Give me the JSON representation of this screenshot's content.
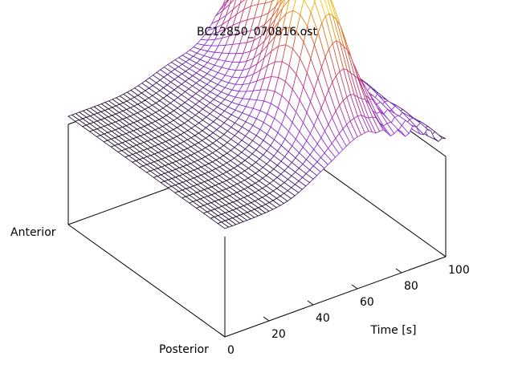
{
  "chart_data": {
    "type": "surface",
    "title": "BC12850_070816.ost",
    "xlabel": "Time [s]",
    "x_ticks": [
      0,
      20,
      40,
      60,
      80,
      100
    ],
    "x_range": [
      0,
      100
    ],
    "y_axis_labels": {
      "start": "Posterior",
      "end": "Anterior"
    },
    "colormap": [
      "#000000",
      "#8a2be2",
      "#c0307a",
      "#e0601a",
      "#ffe000"
    ],
    "grid": false,
    "peak_ridges": [
      {
        "time": 63,
        "position": 0.33,
        "height": 0.85
      },
      {
        "time": 72,
        "position": 0.68,
        "height": 0.62
      },
      {
        "time": 80,
        "position": 0.88,
        "height": 0.42
      }
    ]
  }
}
